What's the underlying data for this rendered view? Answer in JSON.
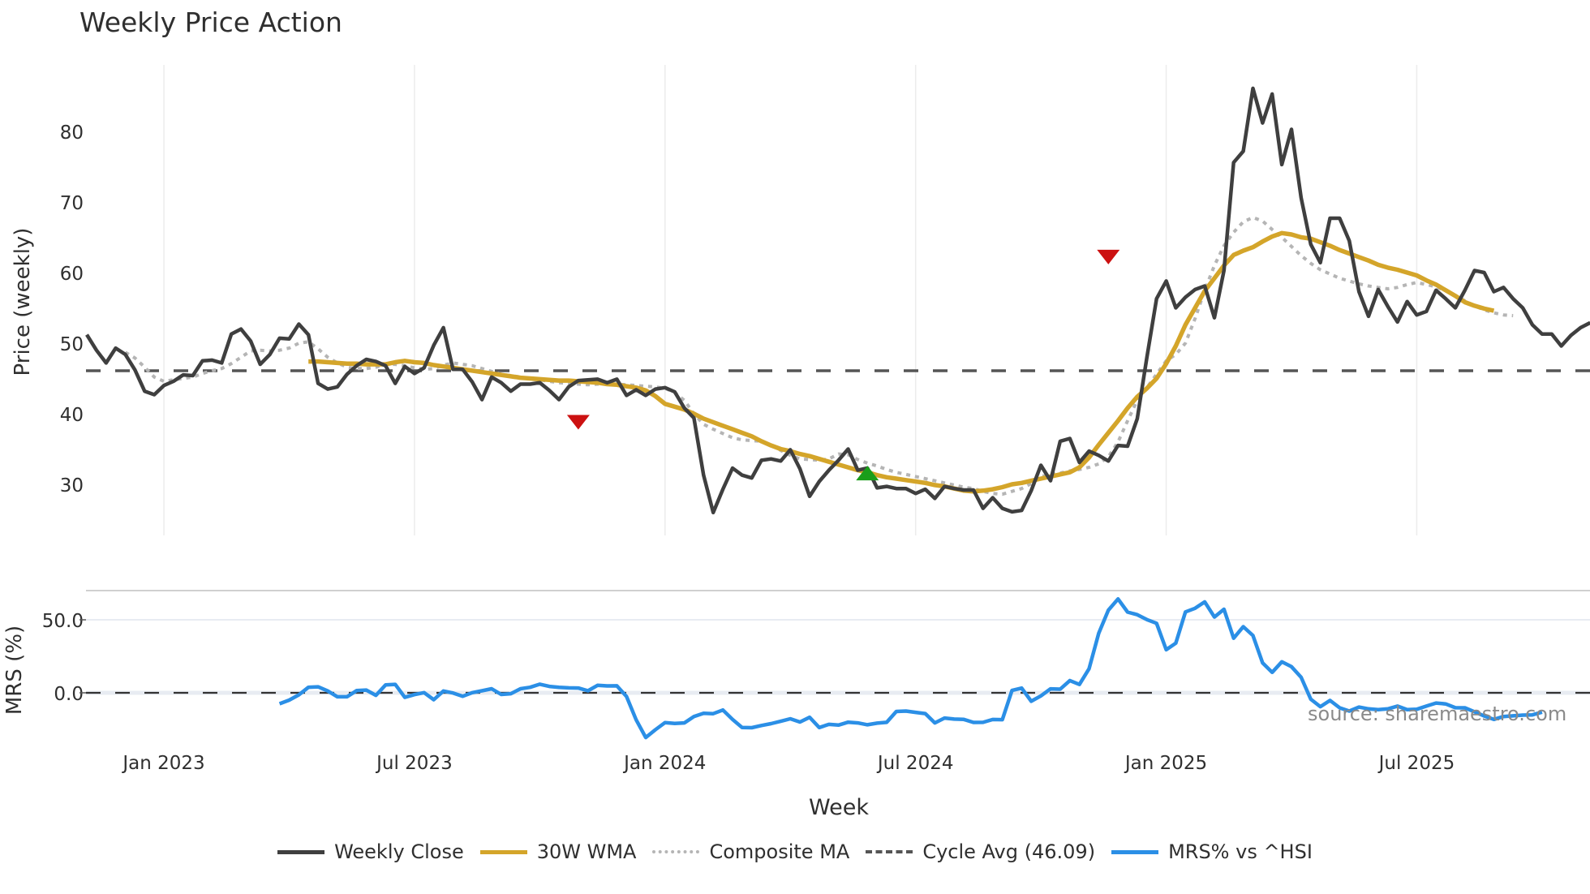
{
  "title": "Weekly Price Action",
  "source_note": "source: sharemaestro.com",
  "colors": {
    "weekly_close": "#3f3f3f",
    "wma": "#d4a52a",
    "composite": "#b5b5b5",
    "cycle_avg": "#555555",
    "mrs": "#2b8fe6",
    "buy_marker": "#1a9e1a",
    "sell_marker": "#cc1111",
    "grid": "#ececec"
  },
  "legend": [
    {
      "key": "weekly_close",
      "label": "Weekly Close",
      "style": "solid"
    },
    {
      "key": "wma",
      "label": "30W WMA",
      "style": "solid"
    },
    {
      "key": "composite",
      "label": "Composite MA",
      "style": "dotted"
    },
    {
      "key": "cycle_avg",
      "label": "Cycle Avg (46.09)",
      "style": "dashed"
    },
    {
      "key": "mrs",
      "label": "MRS% vs ^HSI",
      "style": "solid"
    }
  ],
  "chart_data": [
    {
      "type": "line",
      "title": "Weekly Price Action",
      "xlabel": "Week",
      "ylabel": "Price (weekly)",
      "x_tick_labels": [
        "Jan 2023",
        "Jul 2023",
        "Jan 2024",
        "Jul 2024",
        "Jan 2025",
        "Jul 2025"
      ],
      "x_tick_week_index": [
        8,
        34,
        60,
        86,
        112,
        138
      ],
      "y_ticks": [
        30,
        40,
        50,
        60,
        70,
        80
      ],
      "ylim": [
        22,
        89
      ],
      "grid": "x",
      "legend_position": "bottom",
      "reference_lines": [
        {
          "name": "Cycle Avg",
          "value": 46.09,
          "style": "dashed"
        }
      ],
      "series": [
        {
          "name": "Weekly Close",
          "start_week_index": 0,
          "values": [
            51.2,
            49.0,
            47.2,
            49.3,
            48.4,
            46.2,
            43.2,
            42.7,
            44.0,
            44.6,
            45.5,
            45.4,
            47.5,
            47.6,
            47.2,
            51.3,
            52.0,
            50.3,
            47.0,
            48.4,
            50.7,
            50.6,
            52.7,
            51.2,
            44.3,
            43.5,
            43.8,
            45.6,
            46.8,
            47.7,
            47.4,
            46.8,
            44.3,
            46.7,
            45.7,
            46.5,
            49.7,
            52.2,
            46.3,
            46.3,
            44.5,
            42.0,
            45.2,
            44.4,
            43.2,
            44.2,
            44.2,
            44.4,
            43.3,
            42.0,
            43.8,
            44.7,
            44.8,
            44.9,
            44.4,
            44.9,
            42.6,
            43.4,
            42.6,
            43.5,
            43.7,
            43.1,
            40.8,
            39.4,
            31.3,
            26.0,
            29.3,
            32.3,
            31.3,
            30.9,
            33.4,
            33.6,
            33.3,
            34.9,
            32.2,
            28.3,
            30.4,
            32.0,
            33.4,
            35.0,
            32.0,
            32.3,
            29.5,
            29.7,
            29.4,
            29.4,
            28.7,
            29.3,
            28.0,
            29.7,
            29.4,
            29.2,
            29.2,
            26.6,
            28.1,
            26.6,
            26.1,
            26.3,
            29.1,
            32.7,
            30.5,
            36.1,
            36.5,
            33.1,
            34.7,
            34.1,
            33.3,
            35.5,
            35.4,
            39.3,
            48.0,
            56.3,
            58.8,
            55.0,
            56.5,
            57.6,
            58.1,
            53.6,
            60.3,
            75.6,
            77.2,
            86.1,
            81.2,
            85.3,
            75.3,
            80.3,
            70.6,
            64.0,
            61.4,
            67.7,
            67.7,
            64.5,
            57.3,
            53.8,
            57.6,
            55.2,
            53.0,
            55.9,
            54.0,
            54.5,
            57.5,
            56.3,
            55.0,
            57.5,
            60.3,
            60.0,
            57.3,
            57.9,
            56.3,
            55.0,
            52.6,
            51.3,
            51.3,
            49.6,
            51.1,
            52.2,
            52.9
          ]
        },
        {
          "name": "30W WMA",
          "start_week_index": 23,
          "values": [
            47.4,
            47.4,
            47.3,
            47.2,
            47.1,
            47.1,
            47.0,
            47.0,
            47.0,
            47.3,
            47.5,
            47.3,
            47.2,
            46.9,
            46.7,
            46.5,
            46.3,
            46.1,
            45.9,
            45.7,
            45.5,
            45.3,
            45.1,
            45.0,
            44.9,
            44.8,
            44.7,
            44.7,
            44.6,
            44.5,
            44.4,
            44.2,
            44.1,
            43.9,
            43.7,
            43.3,
            42.5,
            41.4,
            41.0,
            40.6,
            40.0,
            39.3,
            38.8,
            38.3,
            37.8,
            37.3,
            36.8,
            36.1,
            35.5,
            35.0,
            34.7,
            34.3,
            34.0,
            33.6,
            33.2,
            32.8,
            32.4,
            32.0,
            31.7,
            31.3,
            31.0,
            30.8,
            30.6,
            30.4,
            30.2,
            29.9,
            29.7,
            29.4,
            29.1,
            29.0,
            29.1,
            29.3,
            29.6,
            30.0,
            30.2,
            30.5,
            30.8,
            31.1,
            31.4,
            31.7,
            32.4,
            33.8,
            35.6,
            37.3,
            39.0,
            40.8,
            42.4,
            43.6,
            45.0,
            47.1,
            49.6,
            52.6,
            55.0,
            57.4,
            59.2,
            61.0,
            62.5,
            63.1,
            63.6,
            64.4,
            65.1,
            65.6,
            65.4,
            65.0,
            64.8,
            64.3,
            63.8,
            63.2,
            62.7,
            62.2,
            61.7,
            61.1,
            60.7,
            60.4,
            60.0,
            59.6,
            58.9,
            58.3,
            57.5,
            56.7,
            55.8,
            55.3,
            54.9,
            54.6
          ]
        },
        {
          "name": "Composite MA",
          "start_week_index": 4,
          "values": [
            48.7,
            47.9,
            46.6,
            45.2,
            44.6,
            44.8,
            45.0,
            45.2,
            45.7,
            46.1,
            46.4,
            47.1,
            48.0,
            48.9,
            49.0,
            48.9,
            49.0,
            49.3,
            50.0,
            50.2,
            49.2,
            48.0,
            47.2,
            46.6,
            46.4,
            46.4,
            46.6,
            47.0,
            47.0,
            46.8,
            46.5,
            46.3,
            46.4,
            46.9,
            47.2,
            47.0,
            46.8,
            46.4,
            46.0,
            45.6,
            45.4,
            45.2,
            44.9,
            44.8,
            44.6,
            44.4,
            44.3,
            44.2,
            44.1,
            44.2,
            44.2,
            44.2,
            44.1,
            44.0,
            43.9,
            43.8,
            43.6,
            43.0,
            41.9,
            40.0,
            38.5,
            37.8,
            37.2,
            36.6,
            36.3,
            36.2,
            36.1,
            35.6,
            34.8,
            34.1,
            33.6,
            33.5,
            33.4,
            33.6,
            34.3,
            34.2,
            33.5,
            33.0,
            32.6,
            32.1,
            31.7,
            31.4,
            31.1,
            30.8,
            30.5,
            30.2,
            29.9,
            29.6,
            29.4,
            29.0,
            28.7,
            28.6,
            29.0,
            29.4,
            30.1,
            31.1,
            31.4,
            31.6,
            31.9,
            32.1,
            32.4,
            32.9,
            33.9,
            36.0,
            39.0,
            41.9,
            43.7,
            45.6,
            47.5,
            48.4,
            50.0,
            53.5,
            57.5,
            61.0,
            63.8,
            65.7,
            67.2,
            67.8,
            67.3,
            66.1,
            65.0,
            63.7,
            62.4,
            61.3,
            60.4,
            59.8,
            59.2,
            58.8,
            58.4,
            58.1,
            57.9,
            57.7,
            57.9,
            58.3,
            58.6,
            58.3,
            58.0,
            57.4,
            56.7,
            56.0,
            55.3,
            54.7,
            54.3,
            54.0,
            53.9
          ]
        }
      ],
      "markers": [
        {
          "type": "sell",
          "shape": "triangle-down",
          "week_index": 51,
          "price": 38.8
        },
        {
          "type": "buy",
          "shape": "triangle-up",
          "week_index": 81,
          "price": 31.6
        },
        {
          "type": "sell",
          "shape": "triangle-down",
          "week_index": 106,
          "price": 62.2
        }
      ]
    },
    {
      "type": "line",
      "ylabel": "MRS (%)",
      "xlabel": "Week",
      "y_ticks": [
        "0.0",
        "50.0"
      ],
      "ylim": [
        -35,
        70
      ],
      "reference_lines": [
        {
          "name": "zero",
          "value": 0,
          "style": "dashed"
        }
      ],
      "series": [
        {
          "name": "MRS% vs ^HSI",
          "start_week_index": 20,
          "values": [
            -7.5,
            -5.0,
            -1.4,
            3.8,
            4.1,
            1.3,
            -2.7,
            -2.7,
            1.5,
            1.9,
            -1.7,
            5.4,
            5.8,
            -3.1,
            -1.2,
            0.1,
            -4.7,
            1.2,
            -0.1,
            -2.4,
            0.1,
            1.4,
            2.8,
            -1.1,
            -0.6,
            2.8,
            3.8,
            5.9,
            4.4,
            3.8,
            3.4,
            3.3,
            1.4,
            5.1,
            4.7,
            4.8,
            -2.5,
            -18.5,
            -30.6,
            -25.3,
            -20.4,
            -21.0,
            -20.6,
            -16.3,
            -14.0,
            -14.3,
            -11.8,
            -18.2,
            -23.8,
            -23.9,
            -22.4,
            -21.1,
            -19.5,
            -17.8,
            -20.0,
            -16.8,
            -23.8,
            -21.6,
            -22.1,
            -20.1,
            -20.6,
            -21.9,
            -20.8,
            -20.2,
            -12.8,
            -12.5,
            -13.4,
            -14.2,
            -20.6,
            -17.3,
            -18.0,
            -18.2,
            -20.3,
            -20.2,
            -18.3,
            -18.4,
            1.6,
            3.2,
            -5.8,
            -2.1,
            2.7,
            2.5,
            8.4,
            5.7,
            16.5,
            40.8,
            56.6,
            64.3,
            55.3,
            53.5,
            50.1,
            47.6,
            29.5,
            34.0,
            55.4,
            57.9,
            62.3,
            51.9,
            57.2,
            37.4,
            45.3,
            39.2,
            20.5,
            14.0,
            21.2,
            17.9,
            10.6,
            -4.4,
            -9.5,
            -5.2,
            -10.3,
            -12.5,
            -9.8,
            -11.0,
            -11.5,
            -11.0,
            -9.1,
            -11.5,
            -11.3,
            -9.1,
            -7.0,
            -7.6,
            -10.2,
            -10.3,
            -13.0,
            -15.9,
            -18.2,
            -16.2,
            -15.8,
            -15.3,
            -15.1,
            -13.2
          ]
        }
      ]
    }
  ]
}
